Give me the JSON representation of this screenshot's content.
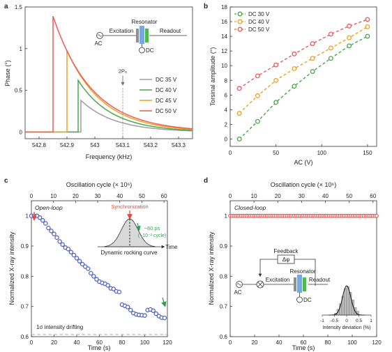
{
  "chart_data": [
    {
      "panel": "a",
      "type": "line",
      "xlabel": "Frequency (kHz)",
      "ylabel": "Phase (°)",
      "xlim": [
        542.75,
        543.35
      ],
      "ylim": [
        -0.08,
        1.5
      ],
      "xticks": [
        542.8,
        542.9,
        543.0,
        543.1,
        543.2,
        543.3
      ],
      "yticks": [
        0,
        0.5,
        1,
        1.5
      ],
      "xtick_labels": [
        "542.8",
        "542.9",
        "543",
        "543.1",
        "543.2",
        "543.3"
      ],
      "ytick_labels": [
        "0",
        "0.5",
        "1",
        "1.5"
      ],
      "legend_position": "bottom-right",
      "annotation": {
        "label": "2P₀",
        "x": 543.1,
        "arrow_y": 0.56
      },
      "inset": {
        "resonator": "Resonator",
        "excitation": "Excitation",
        "readout": "Readout",
        "ac": "AC",
        "dc": "DC"
      },
      "series": [
        {
          "name": "DC 35 V",
          "color": "#9e9e9e",
          "jump_x": 542.95,
          "peak": 0.38,
          "decay": 0.12
        },
        {
          "name": "DC 40 V",
          "color": "#4aa74a",
          "jump_x": 542.94,
          "peak": 0.62,
          "decay": 0.12
        },
        {
          "name": "DC 45 V",
          "color": "#f0a21e",
          "jump_x": 542.9,
          "peak": 0.98,
          "decay": 0.13
        },
        {
          "name": "DC 50 V",
          "color": "#ee5a5a",
          "jump_x": 542.85,
          "peak": 1.39,
          "decay": 0.14
        }
      ]
    },
    {
      "panel": "b",
      "type": "scatter",
      "xlabel": "AC (V)",
      "ylabel": "Torsinal amplitude (°)",
      "xlim": [
        0,
        160
      ],
      "ylim": [
        -1,
        18
      ],
      "xticks": [
        0,
        50,
        100,
        150
      ],
      "yticks": [
        0,
        2,
        4,
        6,
        8,
        10,
        12,
        14,
        16,
        18
      ],
      "legend_position": "top-left",
      "x": [
        10,
        30,
        50,
        70,
        90,
        110,
        130,
        150
      ],
      "series": [
        {
          "name": "DC 30 V",
          "color": "#4aa74a",
          "values": [
            0.0,
            2.4,
            5.0,
            7.2,
            9.2,
            11.0,
            12.7,
            14.0
          ]
        },
        {
          "name": "DC 40 V",
          "color": "#f0a21e",
          "values": [
            3.5,
            5.9,
            8.0,
            9.6,
            11.0,
            12.4,
            13.8,
            15.3
          ]
        },
        {
          "name": "DC 50 V",
          "color": "#ee5a5a",
          "values": [
            6.9,
            8.6,
            10.1,
            11.6,
            13.0,
            14.3,
            15.4,
            16.3
          ]
        }
      ]
    },
    {
      "panel": "c",
      "type": "scatter",
      "xlabel": "Time (s)",
      "ylabel": "Normalized X-ray intensity",
      "top_xlabel": "Oscillation cycle (× 10⁶)",
      "xlim": [
        0,
        120
      ],
      "ylim": [
        0.6,
        1.05
      ],
      "xticks": [
        0,
        20,
        40,
        60,
        80,
        100,
        120
      ],
      "yticks": [
        0.6,
        0.7,
        0.8,
        0.9,
        1.0
      ],
      "ytick_labels": [
        "0.6",
        "0.7",
        "0.8",
        "0.9",
        "1"
      ],
      "top_ticks": [
        0,
        10,
        20,
        30,
        40,
        50,
        60
      ],
      "mode_label": "Open-loop",
      "drift_label": "1σ intensity drifting",
      "drift_level": 0.607,
      "inset": {
        "sync_label": "Synchronization",
        "shift_label": "~60 ps",
        "shift_sub": "(~10⁻² cycle)",
        "axis_label": "Time",
        "curve_label": "Dynamic rocking curve"
      },
      "color": "#5565c0",
      "x": [
        0,
        2.5,
        5,
        7.5,
        10,
        12.5,
        15,
        17.5,
        20,
        22.5,
        25,
        27.5,
        30,
        32.5,
        35,
        37.5,
        40,
        42.5,
        45,
        47.5,
        50,
        52.5,
        55,
        57.5,
        60,
        62.5,
        65,
        67.5,
        70,
        72.5,
        75,
        77.5,
        80,
        82.5,
        85,
        87.5,
        90,
        92.5,
        95,
        97.5,
        100,
        102.5,
        105,
        107.5,
        110,
        112.5,
        115,
        117.5
      ],
      "values": [
        1.0,
        1.0,
        1.0,
        0.994,
        0.985,
        0.975,
        0.96,
        0.95,
        0.94,
        0.928,
        0.915,
        0.905,
        0.895,
        0.89,
        0.88,
        0.87,
        0.86,
        0.85,
        0.84,
        0.832,
        0.825,
        0.81,
        0.8,
        0.79,
        0.782,
        0.778,
        0.775,
        0.77,
        0.76,
        0.758,
        0.75,
        0.748,
        0.706,
        0.702,
        0.698,
        0.688,
        0.678,
        0.674,
        0.672,
        0.671,
        0.67,
        0.688,
        0.69,
        0.686,
        0.676,
        0.668,
        0.663,
        0.662
      ]
    },
    {
      "panel": "d",
      "type": "scatter",
      "xlabel": "Time (s)",
      "ylabel": "Normalized X-ray intensity",
      "top_xlabel": "Oscillation cycle (× 10⁶)",
      "xlim": [
        0,
        120
      ],
      "ylim": [
        0.6,
        1.05
      ],
      "xticks": [
        0,
        20,
        40,
        60,
        80,
        100,
        120
      ],
      "yticks": [
        0.6,
        0.7,
        0.8,
        0.9,
        1.0
      ],
      "ytick_labels": [
        "0.6",
        "0.7",
        "0.8",
        "0.9",
        "1"
      ],
      "top_ticks": [
        0,
        10,
        20,
        30,
        40,
        50,
        60
      ],
      "mode_label": "Closed-loop",
      "color": "#ee5a5a",
      "x_start": 0,
      "x_step": 1.5,
      "count": 81,
      "level": 1.0,
      "inset": {
        "feedback": "Feedback",
        "delta_phi": "Δφ",
        "resonator": "Resonator",
        "excitation": "Excitation",
        "readout": "Readout",
        "ac": "AC",
        "dc": "DC"
      },
      "histogram": {
        "xlabel": "Intensity deviation (%)",
        "xlim": [
          -1,
          1
        ],
        "xticks": [
          -1,
          -0.5,
          0,
          0.5,
          1
        ],
        "xtick_labels": [
          "-1",
          "-0.5",
          "0",
          "0.5",
          "1"
        ],
        "bin_width": 0.1,
        "bin_starts": [
          -0.5,
          -0.4,
          -0.3,
          -0.2,
          -0.1,
          0.0,
          0.1,
          0.2,
          0.3,
          0.4
        ],
        "counts": [
          1,
          3,
          6,
          10,
          14,
          15,
          12,
          8,
          4,
          2
        ],
        "fit_sigma": 0.17,
        "fit_peak": 15.5
      }
    }
  ],
  "panel_labels": [
    "a",
    "b",
    "c",
    "d"
  ]
}
